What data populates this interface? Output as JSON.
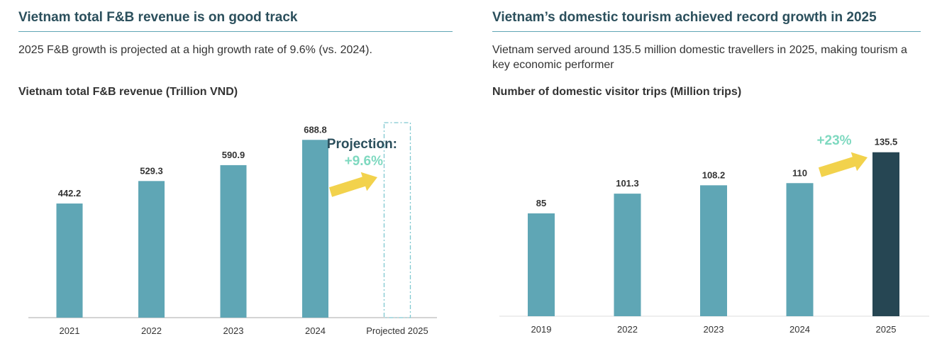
{
  "left": {
    "heading": "Vietnam total F&B revenue is on good track",
    "subtitle": "2025 F&B growth is projected at a high growth rate of 9.6% (vs. 2024).",
    "chart_title": "Vietnam total F&B revenue (Trillion VND)",
    "projection_label": "Projection:",
    "growth_label": "+9.6%"
  },
  "right": {
    "heading": "Vietnam’s domestic tourism achieved record growth in 2025",
    "subtitle": "Vietnam served around 135.5 million domestic travellers in 2025, making tourism a key economic performer",
    "chart_title": "Number of domestic visitor trips (Million trips)",
    "growth_label": "+23%"
  },
  "colors": {
    "bar": "#5fa6b5",
    "highlight_bar": "#264653",
    "heading": "#2b4f5c",
    "arrow": "#f2d24c",
    "growth_text": "#7fd9c0",
    "projection_box": "#7fc8d0"
  },
  "chart_data": [
    {
      "type": "bar",
      "title": "Vietnam total F&B revenue (Trillion VND)",
      "categories": [
        "2021",
        "2022",
        "2023",
        "2024",
        "Projected 2025"
      ],
      "values": [
        442.2,
        529.3,
        590.9,
        688.8,
        null
      ],
      "value_labels": [
        "442.2",
        "529.3",
        "590.9",
        "688.8",
        ""
      ],
      "projected_category": "Projected 2025",
      "annotation": "Projection: +9.6%",
      "ylim": [
        0,
        750
      ],
      "grid": false,
      "legend": "none"
    },
    {
      "type": "bar",
      "title": "Number of domestic visitor trips (Million trips)",
      "categories": [
        "2019",
        "2022",
        "2023",
        "2024",
        "2025"
      ],
      "values": [
        85,
        101.3,
        108.2,
        110,
        135.5
      ],
      "value_labels": [
        "85",
        "101.3",
        "108.2",
        "110",
        "135.5"
      ],
      "highlight_category": "2025",
      "annotation": "+23%",
      "ylim": [
        0,
        150
      ],
      "grid": false,
      "legend": "none"
    }
  ]
}
